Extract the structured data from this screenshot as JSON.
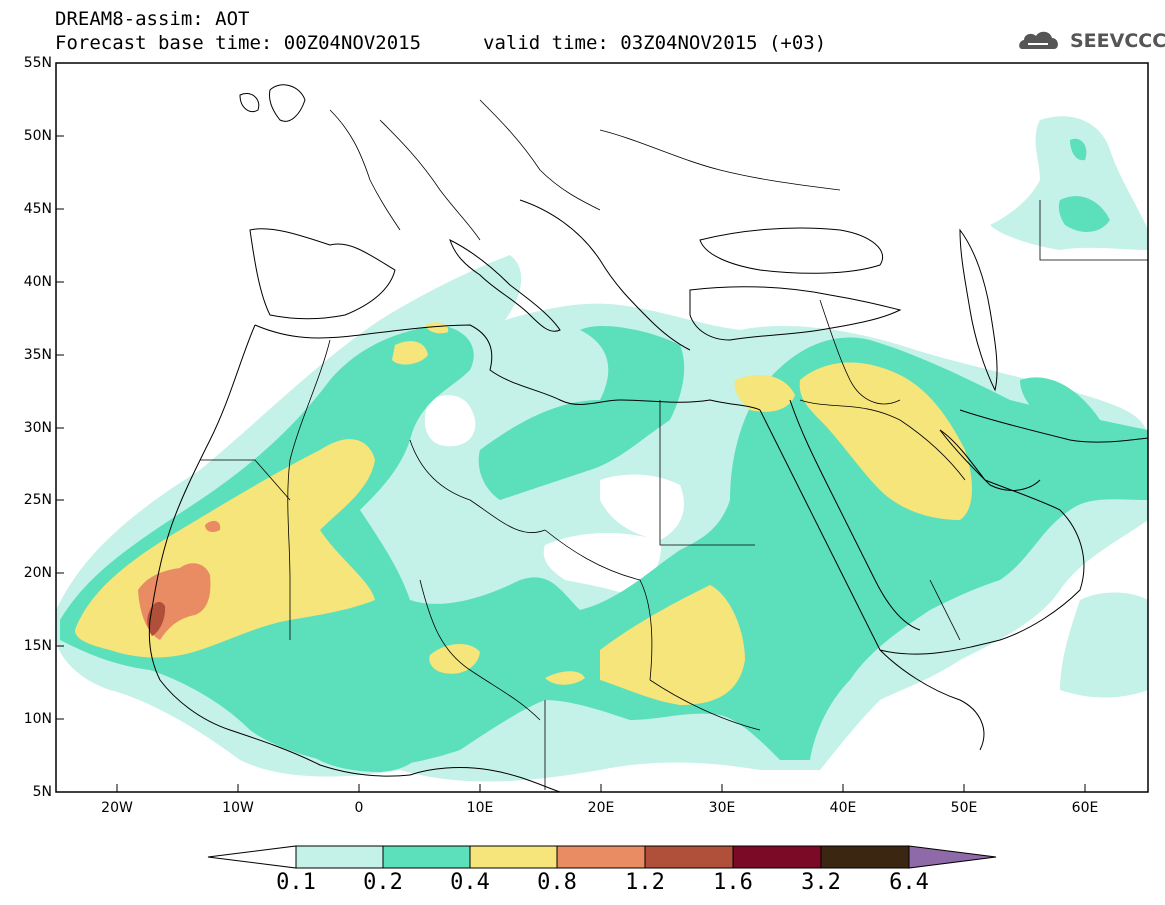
{
  "title": {
    "line1": "DREAM8-assim: AOT",
    "line2": "Forecast base time: 00Z04NOV2015",
    "valid": "valid time: 03Z04NOV2015 (+03)"
  },
  "logo": {
    "text": "SEEVCCC",
    "icon": "cloud-icon"
  },
  "axes": {
    "lat_labels": [
      "55N",
      "50N",
      "45N",
      "40N",
      "35N",
      "30N",
      "25N",
      "20N",
      "15N",
      "10N",
      "5N"
    ],
    "lon_labels": [
      "20W",
      "10W",
      "0",
      "10E",
      "20E",
      "30E",
      "40E",
      "50E",
      "60E"
    ],
    "lat_range": [
      5,
      55
    ],
    "lon_range": [
      -25,
      65
    ]
  },
  "colorbar": {
    "labels": [
      "0.1",
      "0.2",
      "0.4",
      "0.8",
      "1.2",
      "1.6",
      "3.2",
      "6.4"
    ],
    "colors": [
      "#ffffff",
      "#c4f1e8",
      "#5ce0bc",
      "#f5e57a",
      "#e98c63",
      "#b0503a",
      "#7a0a26",
      "#3b2612",
      "#8e6aa8"
    ]
  }
}
